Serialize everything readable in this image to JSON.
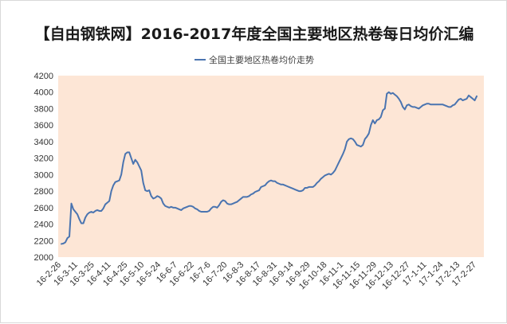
{
  "chart_data": {
    "type": "line",
    "title": "【自由钢铁网】2016-2017年度全国主要地区热卷每日均价汇编",
    "legend": {
      "position": "top",
      "entries": [
        "全国主要地区热卷均价走势"
      ]
    },
    "xlabel": "",
    "ylabel": "",
    "ylim": [
      2000,
      4200
    ],
    "yticks": [
      2000,
      2200,
      2400,
      2600,
      2800,
      3000,
      3200,
      3400,
      3600,
      3800,
      4000,
      4200
    ],
    "grid": false,
    "plot_background": "#fde6d6",
    "colors": {
      "series": "#4a74b0",
      "plot_bg": "#fde6d6"
    },
    "x_tick_labels": [
      "16-2-26",
      "16-3-11",
      "16-3-25",
      "16-4-11",
      "16-4-25",
      "16-5-10",
      "16-5-24",
      "16-6-7",
      "16-6-22",
      "16-7-6",
      "16-7-20",
      "16-8-3",
      "16-8-17",
      "16-8-31",
      "16-9-14",
      "16-9-29",
      "16-10-18",
      "16-11-1",
      "16-11-15",
      "16-11-29",
      "16-12-13",
      "16-12-27",
      "17-1-11",
      "17-1-24",
      "17-2-13",
      "17-2-27"
    ],
    "series": [
      {
        "name": "全国主要地区热卷均价走势",
        "values": [
          2160,
          2165,
          2180,
          2230,
          2250,
          2650,
          2580,
          2550,
          2520,
          2460,
          2410,
          2410,
          2480,
          2520,
          2540,
          2550,
          2540,
          2560,
          2570,
          2560,
          2560,
          2590,
          2640,
          2660,
          2680,
          2800,
          2870,
          2910,
          2920,
          2930,
          3000,
          3150,
          3250,
          3270,
          3270,
          3200,
          3130,
          3180,
          3150,
          3100,
          3050,
          2900,
          2810,
          2800,
          2810,
          2740,
          2710,
          2720,
          2740,
          2730,
          2710,
          2650,
          2620,
          2610,
          2600,
          2610,
          2600,
          2600,
          2590,
          2580,
          2570,
          2590,
          2600,
          2610,
          2620,
          2620,
          2610,
          2590,
          2580,
          2560,
          2550,
          2550,
          2550,
          2550,
          2560,
          2590,
          2610,
          2610,
          2600,
          2630,
          2670,
          2690,
          2680,
          2650,
          2640,
          2640,
          2650,
          2660,
          2670,
          2690,
          2710,
          2730,
          2730,
          2730,
          2740,
          2760,
          2770,
          2790,
          2800,
          2810,
          2850,
          2860,
          2870,
          2900,
          2920,
          2930,
          2920,
          2920,
          2900,
          2890,
          2880,
          2880,
          2870,
          2860,
          2850,
          2840,
          2830,
          2820,
          2810,
          2800,
          2800,
          2810,
          2840,
          2840,
          2850,
          2850,
          2850,
          2870,
          2900,
          2920,
          2950,
          2970,
          2990,
          3000,
          3010,
          3000,
          3020,
          3050,
          3100,
          3150,
          3200,
          3250,
          3310,
          3400,
          3430,
          3440,
          3430,
          3400,
          3360,
          3350,
          3340,
          3360,
          3430,
          3460,
          3500,
          3600,
          3660,
          3620,
          3660,
          3670,
          3700,
          3780,
          3800,
          3980,
          4000,
          3980,
          3990,
          3970,
          3950,
          3920,
          3880,
          3820,
          3790,
          3840,
          3850,
          3830,
          3820,
          3820,
          3810,
          3800,
          3820,
          3840,
          3850,
          3860,
          3860,
          3850,
          3850,
          3850,
          3850,
          3850,
          3850,
          3850,
          3840,
          3830,
          3820,
          3820,
          3840,
          3850,
          3880,
          3910,
          3920,
          3900,
          3910,
          3920,
          3960,
          3940,
          3920,
          3900,
          3950
        ]
      }
    ]
  }
}
